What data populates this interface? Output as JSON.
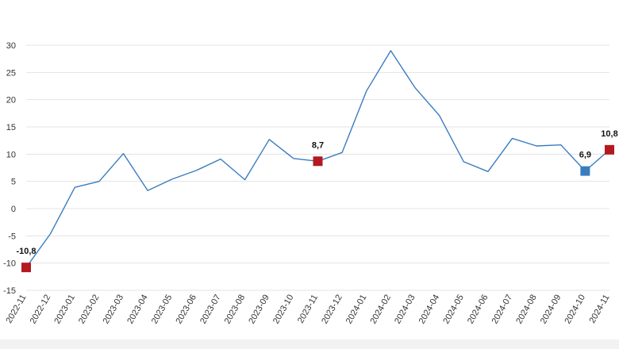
{
  "chart_data": {
    "type": "line",
    "title": "",
    "xlabel": "",
    "ylabel": "",
    "ylim": [
      -15,
      30
    ],
    "yticks": [
      -15,
      -10,
      -5,
      0,
      5,
      10,
      15,
      20,
      25,
      30
    ],
    "grid": "horizontal",
    "categories": [
      "2022-11",
      "2022-12",
      "2023-01",
      "2023-02",
      "2023-03",
      "2023-04",
      "2023-05",
      "2023-06",
      "2023-07",
      "2023-08",
      "2023-09",
      "2023-10",
      "2023-11",
      "2023-12",
      "2024-01",
      "2024-02",
      "2024-03",
      "2024-04",
      "2024-05",
      "2024-06",
      "2024-07",
      "2024-08",
      "2024-09",
      "2024-10",
      "2024-11"
    ],
    "series": [
      {
        "color": "#3a7cc0",
        "values": [
          -10.8,
          -4.6,
          3.9,
          5.0,
          10.1,
          3.3,
          5.4,
          7.0,
          9.1,
          5.3,
          12.7,
          9.2,
          8.7,
          10.3,
          21.6,
          29.0,
          22.2,
          17.1,
          8.6,
          6.8,
          12.9,
          11.5,
          11.7,
          6.9,
          10.8
        ]
      }
    ],
    "markers": [
      {
        "index": 0,
        "label": "-10,8",
        "color": "#b3191f"
      },
      {
        "index": 12,
        "label": "8,7",
        "color": "#b3191f"
      },
      {
        "index": 23,
        "label": "6,9",
        "color": "#3a7cc0"
      },
      {
        "index": 24,
        "label": "10,8",
        "color": "#b3191f"
      }
    ]
  }
}
